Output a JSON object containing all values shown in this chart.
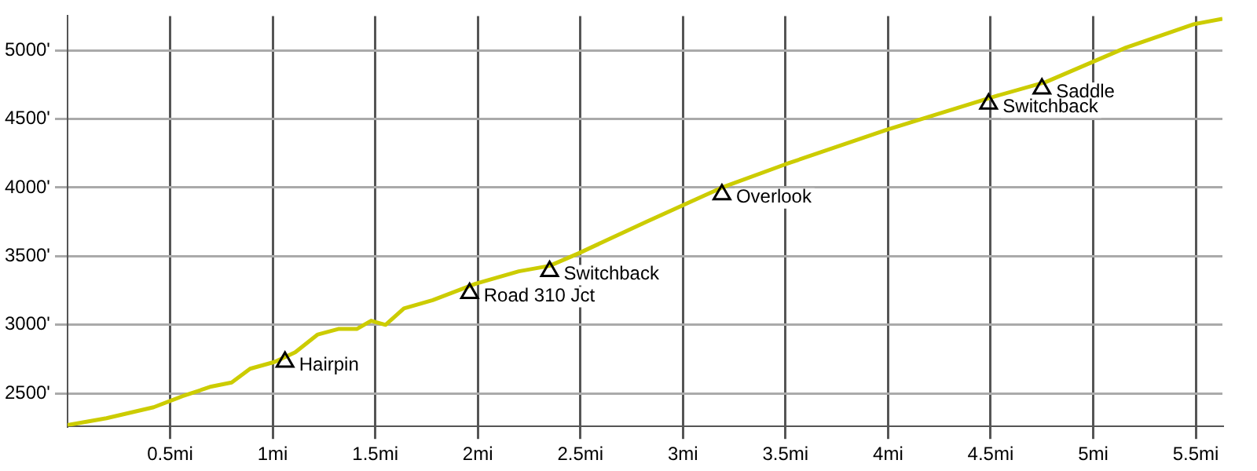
{
  "chart_data": {
    "type": "line",
    "x": [
      0,
      0.19,
      0.42,
      0.56,
      0.7,
      0.8,
      0.89,
      1.01,
      1.11,
      1.22,
      1.32,
      1.41,
      1.48,
      1.55,
      1.64,
      1.78,
      1.99,
      2.2,
      2.35,
      2.49,
      2.82,
      3.19,
      3.5,
      3.99,
      4.51,
      4.77,
      5.16,
      5.49,
      5.63
    ],
    "series": [
      {
        "type": "line",
        "color": "#cccc00",
        "marker": "none",
        "values": [
          2270,
          2320,
          2400,
          2480,
          2550,
          2580,
          2680,
          2730,
          2800,
          2930,
          2970,
          2970,
          3030,
          3000,
          3120,
          3180,
          3300,
          3390,
          3430,
          3520,
          3750,
          4000,
          4170,
          4420,
          4660,
          4770,
          5020,
          5190,
          5230
        ]
      },
      {
        "type": "scatter",
        "color": "#000000",
        "marker": "triangle",
        "x": [
          1.06,
          1.96,
          2.35,
          3.19,
          4.49,
          4.75
        ],
        "values": [
          2730,
          3230,
          3390,
          3950,
          4610,
          4720
        ]
      }
    ],
    "annotations": [
      {
        "text": "Hairpin",
        "x": 1.06,
        "y": 2730
      },
      {
        "text": "Road 310 Jct",
        "x": 1.96,
        "y": 3230
      },
      {
        "text": "Switchback",
        "x": 2.35,
        "y": 3390
      },
      {
        "text": "Overlook",
        "x": 3.19,
        "y": 3950
      },
      {
        "text": "Switchback",
        "x": 4.49,
        "y": 4610
      },
      {
        "text": "Saddle",
        "x": 4.75,
        "y": 4720
      }
    ],
    "xlim": [
      0,
      5.63
    ],
    "xticks": [
      {
        "value": 0.5,
        "label": "0.5mi"
      },
      {
        "value": 1,
        "label": "1mi"
      },
      {
        "value": 1.5,
        "label": "1.5mi"
      },
      {
        "value": 2,
        "label": "2mi"
      },
      {
        "value": 2.5,
        "label": "2.5mi"
      },
      {
        "value": 3,
        "label": "3mi"
      },
      {
        "value": 3.5,
        "label": "3.5mi"
      },
      {
        "value": 4,
        "label": "4mi"
      },
      {
        "value": 4.5,
        "label": "4.5mi"
      },
      {
        "value": 5,
        "label": "5mi"
      },
      {
        "value": 5.5,
        "label": "5.5mi"
      }
    ],
    "ylim": [
      2260,
      5250
    ],
    "yticks": [
      {
        "value": 2500,
        "label": "2500'"
      },
      {
        "value": 3000,
        "label": "3000'"
      },
      {
        "value": 3500,
        "label": "3500'"
      },
      {
        "value": 4000,
        "label": "4000'"
      },
      {
        "value": 4500,
        "label": "4500'"
      },
      {
        "value": 5000,
        "label": "5000'"
      }
    ],
    "grid": true,
    "legend": false
  }
}
